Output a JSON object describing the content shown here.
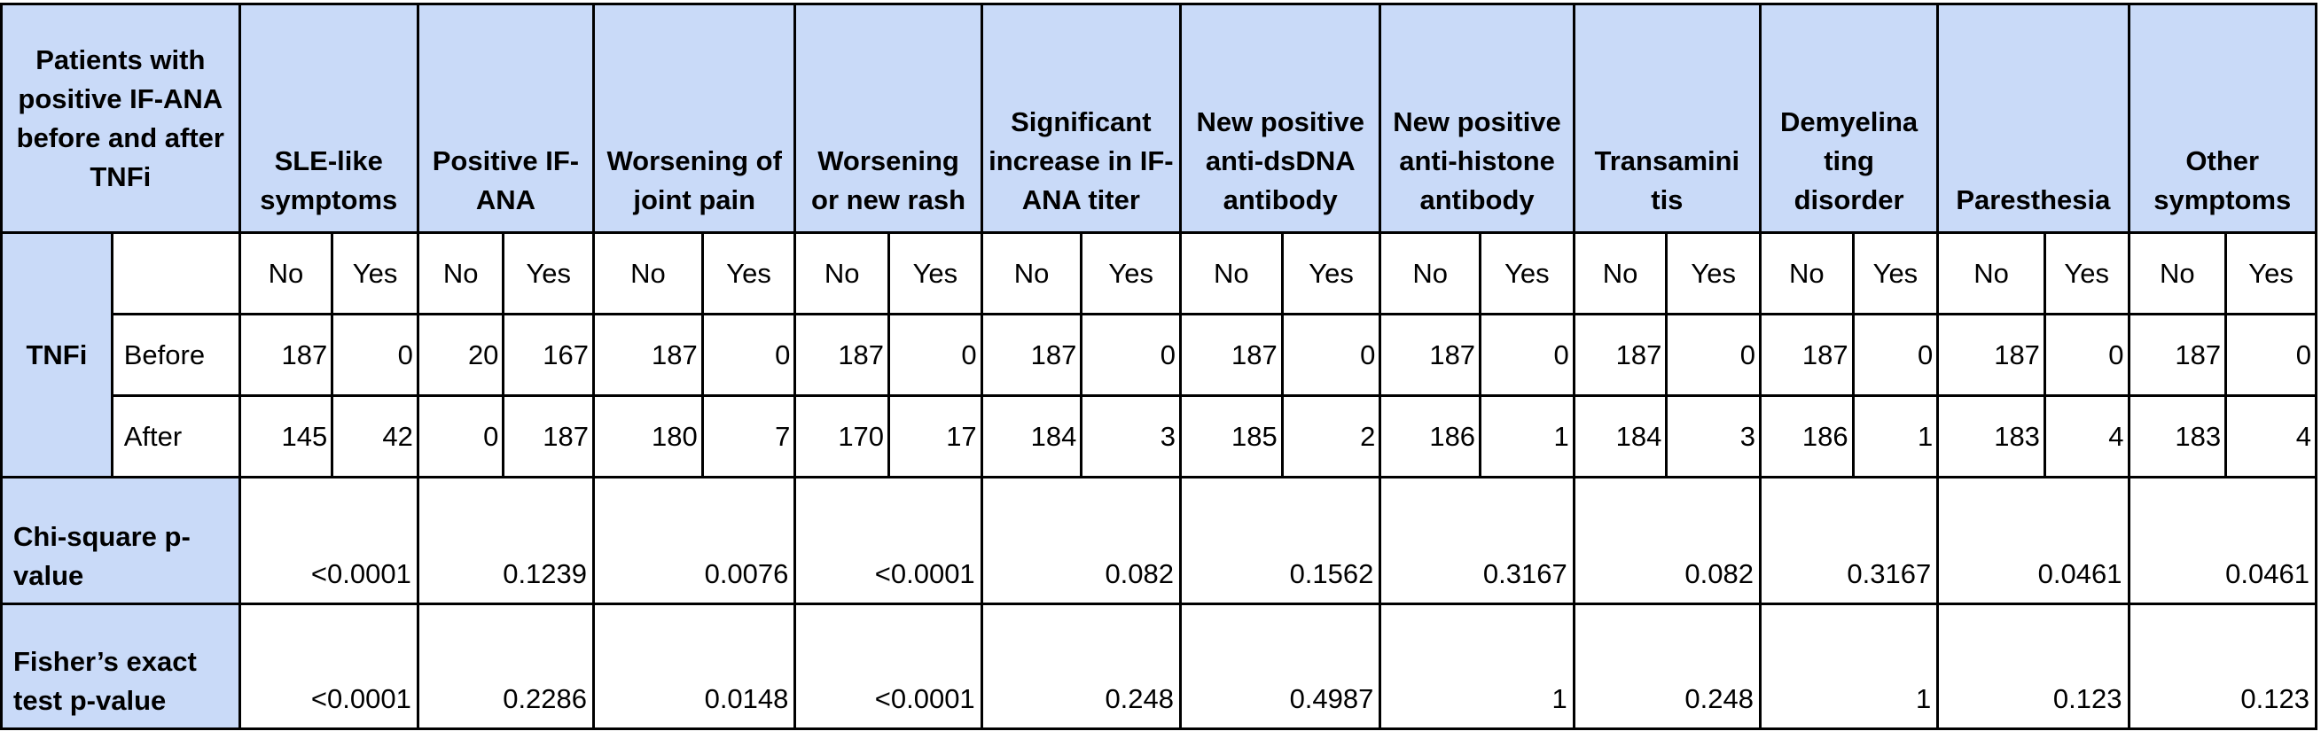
{
  "header": {
    "corner": "Patients with positive IF-ANA before and after TNFi",
    "columns": [
      {
        "label": "SLE-like symptoms"
      },
      {
        "label": "Positive IF-ANA"
      },
      {
        "label": "Worsening of joint pain"
      },
      {
        "label": "Worsening or new rash"
      },
      {
        "label": "Significant increase in IF-ANA titer"
      },
      {
        "label": "New positive anti-dsDNA antibody"
      },
      {
        "label": "New positive anti-histone antibody"
      },
      {
        "label": "Transamini tis"
      },
      {
        "label": "Demyelina ting disorder"
      },
      {
        "label": "Paresthesia"
      },
      {
        "label": "Other symptoms"
      }
    ]
  },
  "sub_labels": {
    "no": "No",
    "yes": "Yes"
  },
  "tnfi_label": "TNFi",
  "rows": {
    "before": {
      "label": "Before",
      "cells": [
        {
          "no": "187",
          "yes": "0"
        },
        {
          "no": "20",
          "yes": "167"
        },
        {
          "no": "187",
          "yes": "0"
        },
        {
          "no": "187",
          "yes": "0"
        },
        {
          "no": "187",
          "yes": "0"
        },
        {
          "no": "187",
          "yes": "0"
        },
        {
          "no": "187",
          "yes": "0"
        },
        {
          "no": "187",
          "yes": "0"
        },
        {
          "no": "187",
          "yes": "0"
        },
        {
          "no": "187",
          "yes": "0"
        },
        {
          "no": "187",
          "yes": "0"
        }
      ]
    },
    "after": {
      "label": "After",
      "cells": [
        {
          "no": "145",
          "yes": "42"
        },
        {
          "no": "0",
          "yes": "187"
        },
        {
          "no": "180",
          "yes": "7"
        },
        {
          "no": "170",
          "yes": "17"
        },
        {
          "no": "184",
          "yes": "3"
        },
        {
          "no": "185",
          "yes": "2"
        },
        {
          "no": "186",
          "yes": "1"
        },
        {
          "no": "184",
          "yes": "3"
        },
        {
          "no": "186",
          "yes": "1"
        },
        {
          "no": "183",
          "yes": "4"
        },
        {
          "no": "183",
          "yes": "4"
        }
      ]
    }
  },
  "chi_square": {
    "label": "Chi-square p-value",
    "values": [
      "<0.0001",
      "0.1239",
      "0.0076",
      "<0.0001",
      "0.082",
      "0.1562",
      "0.3167",
      "0.082",
      "0.3167",
      "0.0461",
      "0.0461"
    ]
  },
  "fisher": {
    "label": "Fisher’s exact test p-value",
    "values": [
      "<0.0001",
      "0.2286",
      "0.0148",
      "<0.0001",
      "0.248",
      "0.4987",
      "1",
      "0.248",
      "1",
      "0.123",
      "0.123"
    ]
  }
}
